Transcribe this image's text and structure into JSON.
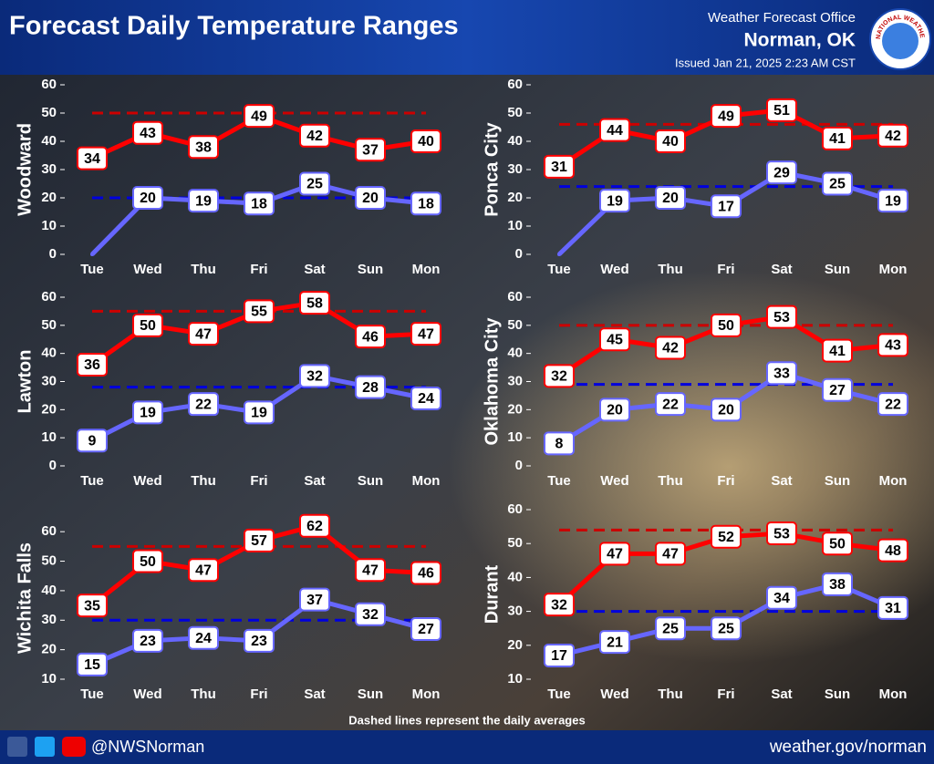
{
  "header": {
    "title": "Forecast Daily Temperature Ranges",
    "office": "Weather Forecast Office",
    "location": "Norman, OK",
    "issued": "Issued Jan 21, 2025 2:23 AM CST",
    "logo_text": "NATIONAL WEATHER SERVICE"
  },
  "footer": {
    "note": "Dashed lines represent the daily averages",
    "social": "@NWSNorman",
    "website": "weather.gov/norman"
  },
  "chart_data": [
    {
      "type": "line",
      "ylabel": "Woodward",
      "categories": [
        "Tue",
        "Wed",
        "Thu",
        "Fri",
        "Sat",
        "Sun",
        "Mon"
      ],
      "ylim": [
        0,
        60
      ],
      "yticks": [
        0,
        10,
        20,
        30,
        40,
        50,
        60
      ],
      "series": [
        {
          "color": "#ff0000",
          "values": [
            34,
            43,
            38,
            49,
            42,
            37,
            40
          ]
        },
        {
          "color": "#6666ff",
          "values": [
            0,
            20,
            19,
            18,
            25,
            20,
            18
          ],
          "value_labels": [
            null,
            "20",
            "19",
            "18",
            "25",
            "20",
            "18"
          ]
        }
      ],
      "averages": [
        {
          "color": "#cc0000",
          "value": 50
        },
        {
          "color": "#0000dd",
          "value": 20
        }
      ]
    },
    {
      "type": "line",
      "ylabel": "Ponca City",
      "categories": [
        "Tue",
        "Wed",
        "Thu",
        "Fri",
        "Sat",
        "Sun",
        "Mon"
      ],
      "ylim": [
        0,
        60
      ],
      "yticks": [
        0,
        10,
        20,
        30,
        40,
        50,
        60
      ],
      "series": [
        {
          "color": "#ff0000",
          "values": [
            31,
            44,
            40,
            49,
            51,
            41,
            42
          ]
        },
        {
          "color": "#6666ff",
          "values": [
            0,
            19,
            20,
            17,
            29,
            25,
            19
          ],
          "value_labels": [
            null,
            "19",
            "20",
            "17",
            "29",
            "25",
            "19"
          ]
        }
      ],
      "averages": [
        {
          "color": "#cc0000",
          "value": 46
        },
        {
          "color": "#0000dd",
          "value": 24
        }
      ]
    },
    {
      "type": "line",
      "ylabel": "Lawton",
      "categories": [
        "Tue",
        "Wed",
        "Thu",
        "Fri",
        "Sat",
        "Sun",
        "Mon"
      ],
      "ylim": [
        0,
        60
      ],
      "yticks": [
        0,
        10,
        20,
        30,
        40,
        50,
        60
      ],
      "series": [
        {
          "color": "#ff0000",
          "values": [
            36,
            50,
            47,
            55,
            58,
            46,
            47
          ]
        },
        {
          "color": "#6666ff",
          "values": [
            9,
            19,
            22,
            19,
            32,
            28,
            24
          ]
        }
      ],
      "averages": [
        {
          "color": "#cc0000",
          "value": 55
        },
        {
          "color": "#0000dd",
          "value": 28
        }
      ]
    },
    {
      "type": "line",
      "ylabel": "Oklahoma City",
      "categories": [
        "Tue",
        "Wed",
        "Thu",
        "Fri",
        "Sat",
        "Sun",
        "Mon"
      ],
      "ylim": [
        0,
        60
      ],
      "yticks": [
        0,
        10,
        20,
        30,
        40,
        50,
        60
      ],
      "series": [
        {
          "color": "#ff0000",
          "values": [
            32,
            45,
            42,
            50,
            53,
            41,
            43
          ]
        },
        {
          "color": "#6666ff",
          "values": [
            8,
            20,
            22,
            20,
            33,
            27,
            22
          ]
        }
      ],
      "averages": [
        {
          "color": "#cc0000",
          "value": 50
        },
        {
          "color": "#0000dd",
          "value": 29
        }
      ]
    },
    {
      "type": "line",
      "ylabel": "Wichita Falls",
      "categories": [
        "Tue",
        "Wed",
        "Thu",
        "Fri",
        "Sat",
        "Sun",
        "Mon"
      ],
      "ylim": [
        10,
        65
      ],
      "yticks": [
        10,
        20,
        30,
        40,
        50,
        60
      ],
      "series": [
        {
          "color": "#ff0000",
          "values": [
            35,
            50,
            47,
            57,
            62,
            47,
            46
          ]
        },
        {
          "color": "#6666ff",
          "values": [
            15,
            23,
            24,
            23,
            37,
            32,
            27
          ]
        }
      ],
      "averages": [
        {
          "color": "#cc0000",
          "value": 55
        },
        {
          "color": "#0000dd",
          "value": 30
        }
      ]
    },
    {
      "type": "line",
      "ylabel": "Durant",
      "categories": [
        "Tue",
        "Wed",
        "Thu",
        "Fri",
        "Sat",
        "Sun",
        "Mon"
      ],
      "ylim": [
        10,
        60
      ],
      "yticks": [
        10,
        20,
        30,
        40,
        50,
        60
      ],
      "series": [
        {
          "color": "#ff0000",
          "values": [
            32,
            47,
            47,
            52,
            53,
            50,
            48
          ]
        },
        {
          "color": "#6666ff",
          "values": [
            17,
            21,
            25,
            25,
            34,
            38,
            31
          ]
        }
      ],
      "averages": [
        {
          "color": "#cc0000",
          "value": 54
        },
        {
          "color": "#0000dd",
          "value": 30
        }
      ]
    }
  ]
}
